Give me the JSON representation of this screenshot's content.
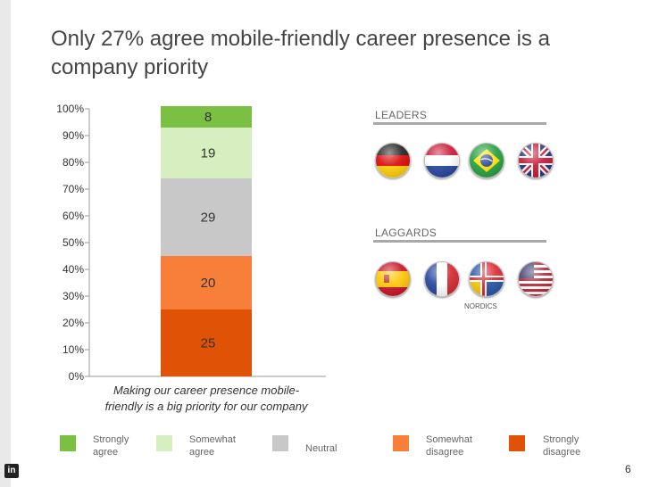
{
  "title": "Only 27% agree mobile-friendly career presence is a company priority",
  "chart_data": {
    "type": "bar",
    "stacked": true,
    "categories": [
      "Making our career presence mobile-friendly is a big priority for our company"
    ],
    "category_lines": [
      "Making our career presence mobile-",
      "friendly is a big priority for our company"
    ],
    "series": [
      {
        "name": "Strongly disagree",
        "values": [
          25
        ],
        "color": "#e05206"
      },
      {
        "name": "Somewhat disagree",
        "values": [
          20
        ],
        "color": "#f77f3a"
      },
      {
        "name": "Neutral",
        "values": [
          29
        ],
        "color": "#c8c8c8"
      },
      {
        "name": "Somewhat agree",
        "values": [
          19
        ],
        "color": "#d7efc0"
      },
      {
        "name": "Strongly agree",
        "values": [
          8
        ],
        "color": "#7ac043"
      }
    ],
    "ylim": [
      0,
      100
    ],
    "yticks": [
      "0%",
      "10%",
      "20%",
      "30%",
      "40%",
      "50%",
      "60%",
      "70%",
      "80%",
      "90%",
      "100%"
    ],
    "grid": false,
    "legend": "bottom"
  },
  "legend": [
    {
      "label": "Strongly\nagree",
      "color": "#7ac043"
    },
    {
      "label": "Somewhat\nagree",
      "color": "#d7efc0"
    },
    {
      "label": "Neutral",
      "color": "#c8c8c8"
    },
    {
      "label": "Somewhat\ndisagree",
      "color": "#f77f3a"
    },
    {
      "label": "Strongly\ndisagree",
      "color": "#e05206"
    }
  ],
  "leaders": {
    "label": "LEADERS",
    "flags": [
      "germany-flag",
      "netherlands-flag",
      "brazil-flag",
      "united-kingdom-flag"
    ]
  },
  "laggards": {
    "label": "LAGGARDS",
    "flags": [
      "spain-flag",
      "france-flag",
      "nordics-flag",
      "usa-flag"
    ],
    "note": "NORDICS"
  },
  "page_number": "6",
  "logo": "in"
}
